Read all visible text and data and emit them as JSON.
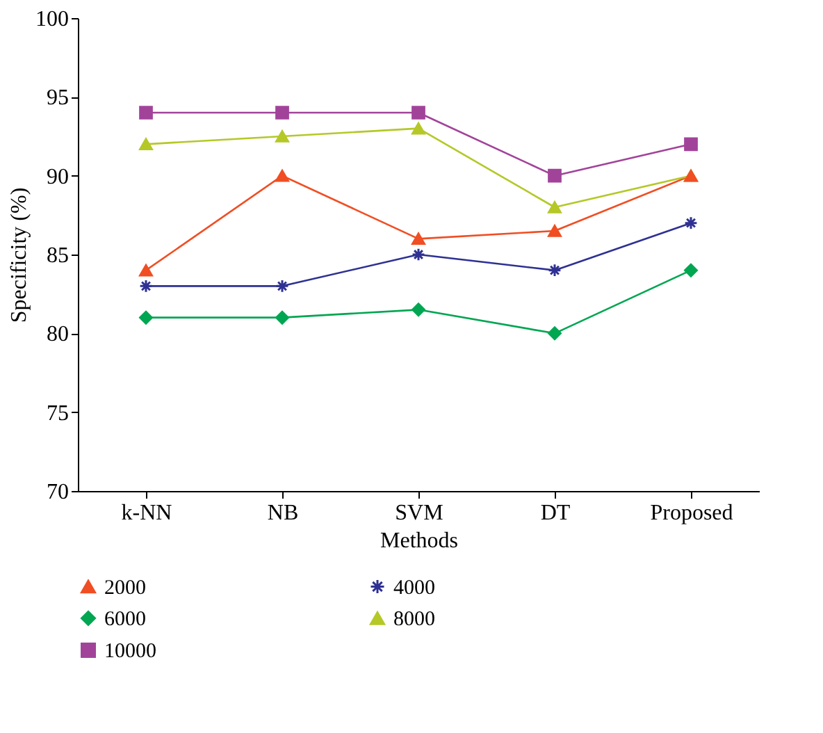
{
  "chart_data": {
    "type": "line",
    "xlabel": "Methods",
    "ylabel": "Specificity (%)",
    "categories": [
      "k-NN",
      "NB",
      "SVM",
      "DT",
      "Proposed"
    ],
    "series": [
      {
        "name": "2000",
        "color": "#f04e23",
        "marker": "triangle",
        "values": [
          84,
          90,
          86,
          86.5,
          90
        ]
      },
      {
        "name": "4000",
        "color": "#2e3192",
        "marker": "cross",
        "values": [
          83,
          83,
          85,
          84,
          87
        ]
      },
      {
        "name": "6000",
        "color": "#00a651",
        "marker": "diamond",
        "values": [
          81,
          81,
          81.5,
          80,
          84
        ]
      },
      {
        "name": "8000",
        "color": "#b5c827",
        "marker": "triangle",
        "values": [
          92,
          92.5,
          93,
          88,
          90
        ]
      },
      {
        "name": "10000",
        "color": "#a2439a",
        "marker": "square",
        "values": [
          94,
          94,
          94,
          90,
          92
        ]
      }
    ],
    "ylim": [
      70,
      100
    ],
    "yticks": [
      70,
      75,
      80,
      85,
      90,
      95,
      100
    ],
    "grid": false,
    "legend": "bottom",
    "line_style": "solid"
  }
}
